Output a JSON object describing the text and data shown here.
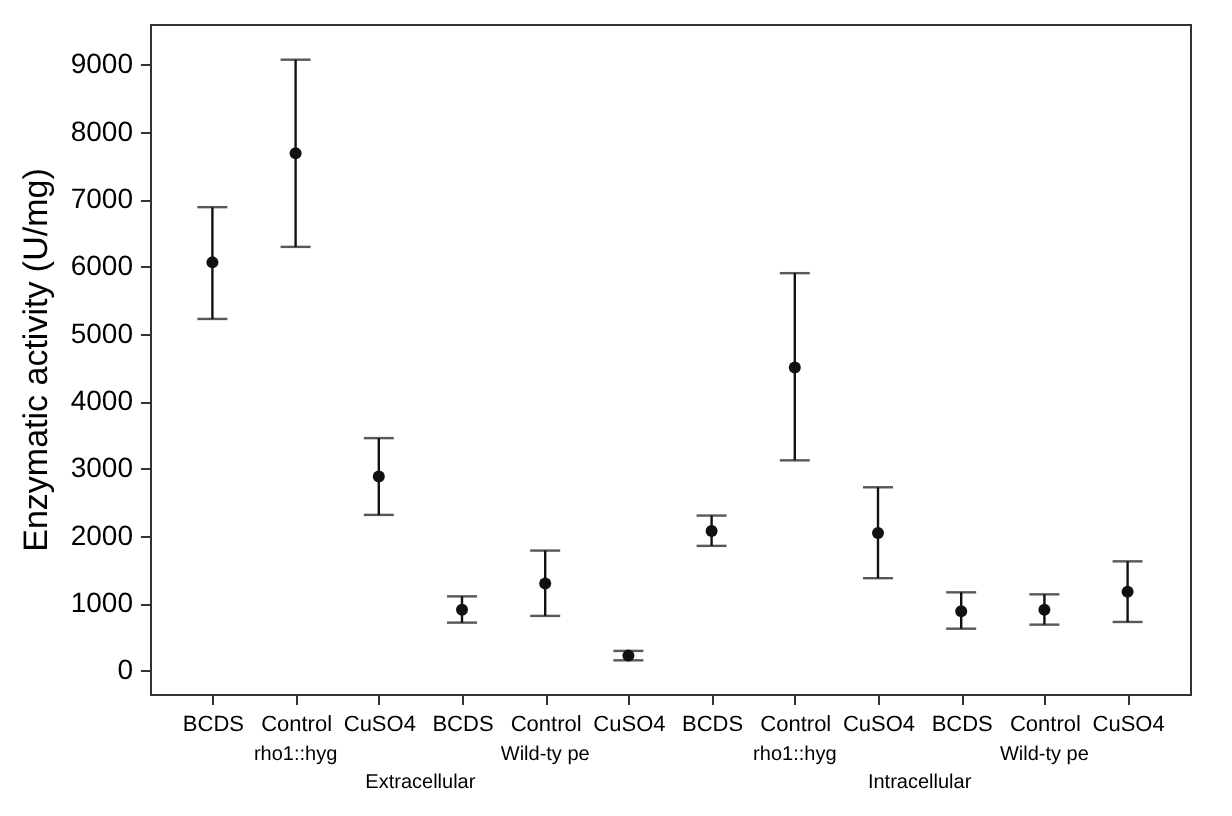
{
  "chart_data": {
    "type": "scatter",
    "ylabel": "Enzymatic activity (U/mg)",
    "categories": [
      "BCDS",
      "Control",
      "CuSO4",
      "BCDS",
      "Control",
      "CuSO4",
      "BCDS",
      "Control",
      "CuSO4",
      "BCDS",
      "Control",
      "CuSO4"
    ],
    "series": [
      {
        "color": "#111111",
        "values": [
          6060,
          7680,
          2880,
          900,
          1290,
          220,
          2070,
          4500,
          2040,
          880,
          900,
          1170
        ],
        "errors": [
          [
            5220,
            6880
          ],
          [
            6290,
            9070
          ],
          [
            2310,
            3450
          ],
          [
            710,
            1100
          ],
          [
            810,
            1780
          ],
          [
            150,
            290
          ],
          [
            1850,
            2300
          ],
          [
            3120,
            5900
          ],
          [
            1370,
            2720
          ],
          [
            620,
            1160
          ],
          [
            680,
            1130
          ],
          [
            720,
            1620
          ]
        ]
      }
    ],
    "ylim": [
      -350,
      9600
    ],
    "yticks": [
      0,
      1000,
      2000,
      3000,
      4000,
      5000,
      6000,
      7000,
      8000,
      9000
    ],
    "marker": "circle",
    "grid": false,
    "annotations": [
      "rho1::hyg",
      "Wild-ty pe",
      "rho1::hyg",
      "Wild-ty pe",
      "Extracellular",
      "Intracellular"
    ]
  }
}
